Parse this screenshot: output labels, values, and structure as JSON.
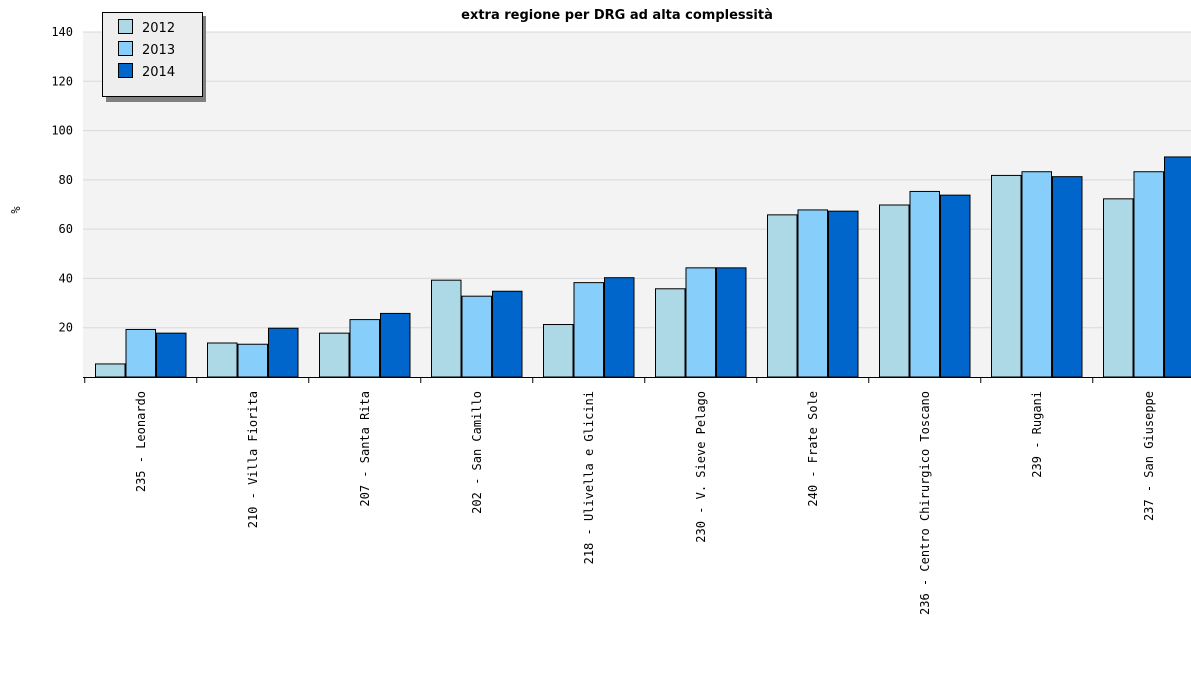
{
  "chart_data": {
    "type": "bar",
    "title": "extra regione per DRG ad alta complessità",
    "ylabel": "%",
    "xlabel": "",
    "ylim": [
      0,
      140
    ],
    "yticks": [
      20,
      40,
      60,
      80,
      100,
      120,
      140
    ],
    "grid": true,
    "legend_position": "top-left",
    "categories": [
      "235 - Leonardo",
      "210 - Villa Fiorita",
      "207 - Santa Rita",
      "202 - San Camillo",
      "218 - Ulivella e Glicini",
      "230 - V. Sieve Pelago",
      "240 - Frate Sole",
      "236 - Centro Chirurgico Toscano",
      "239 - Rugani",
      "237 - San Giuseppe"
    ],
    "series": [
      {
        "name": "2012",
        "color": "#add8e6",
        "values": [
          5.5,
          14,
          18,
          39.5,
          21.5,
          36,
          66,
          70,
          82,
          72.5
        ]
      },
      {
        "name": "2013",
        "color": "#87cefa",
        "values": [
          19.5,
          13.5,
          23.5,
          33,
          38.5,
          44.5,
          68,
          75.5,
          83.5,
          83.5
        ]
      },
      {
        "name": "2014",
        "color": "#0066cc",
        "values": [
          18,
          20,
          26,
          35,
          40.5,
          44.5,
          67.5,
          74,
          81.5,
          89.5
        ]
      }
    ]
  }
}
